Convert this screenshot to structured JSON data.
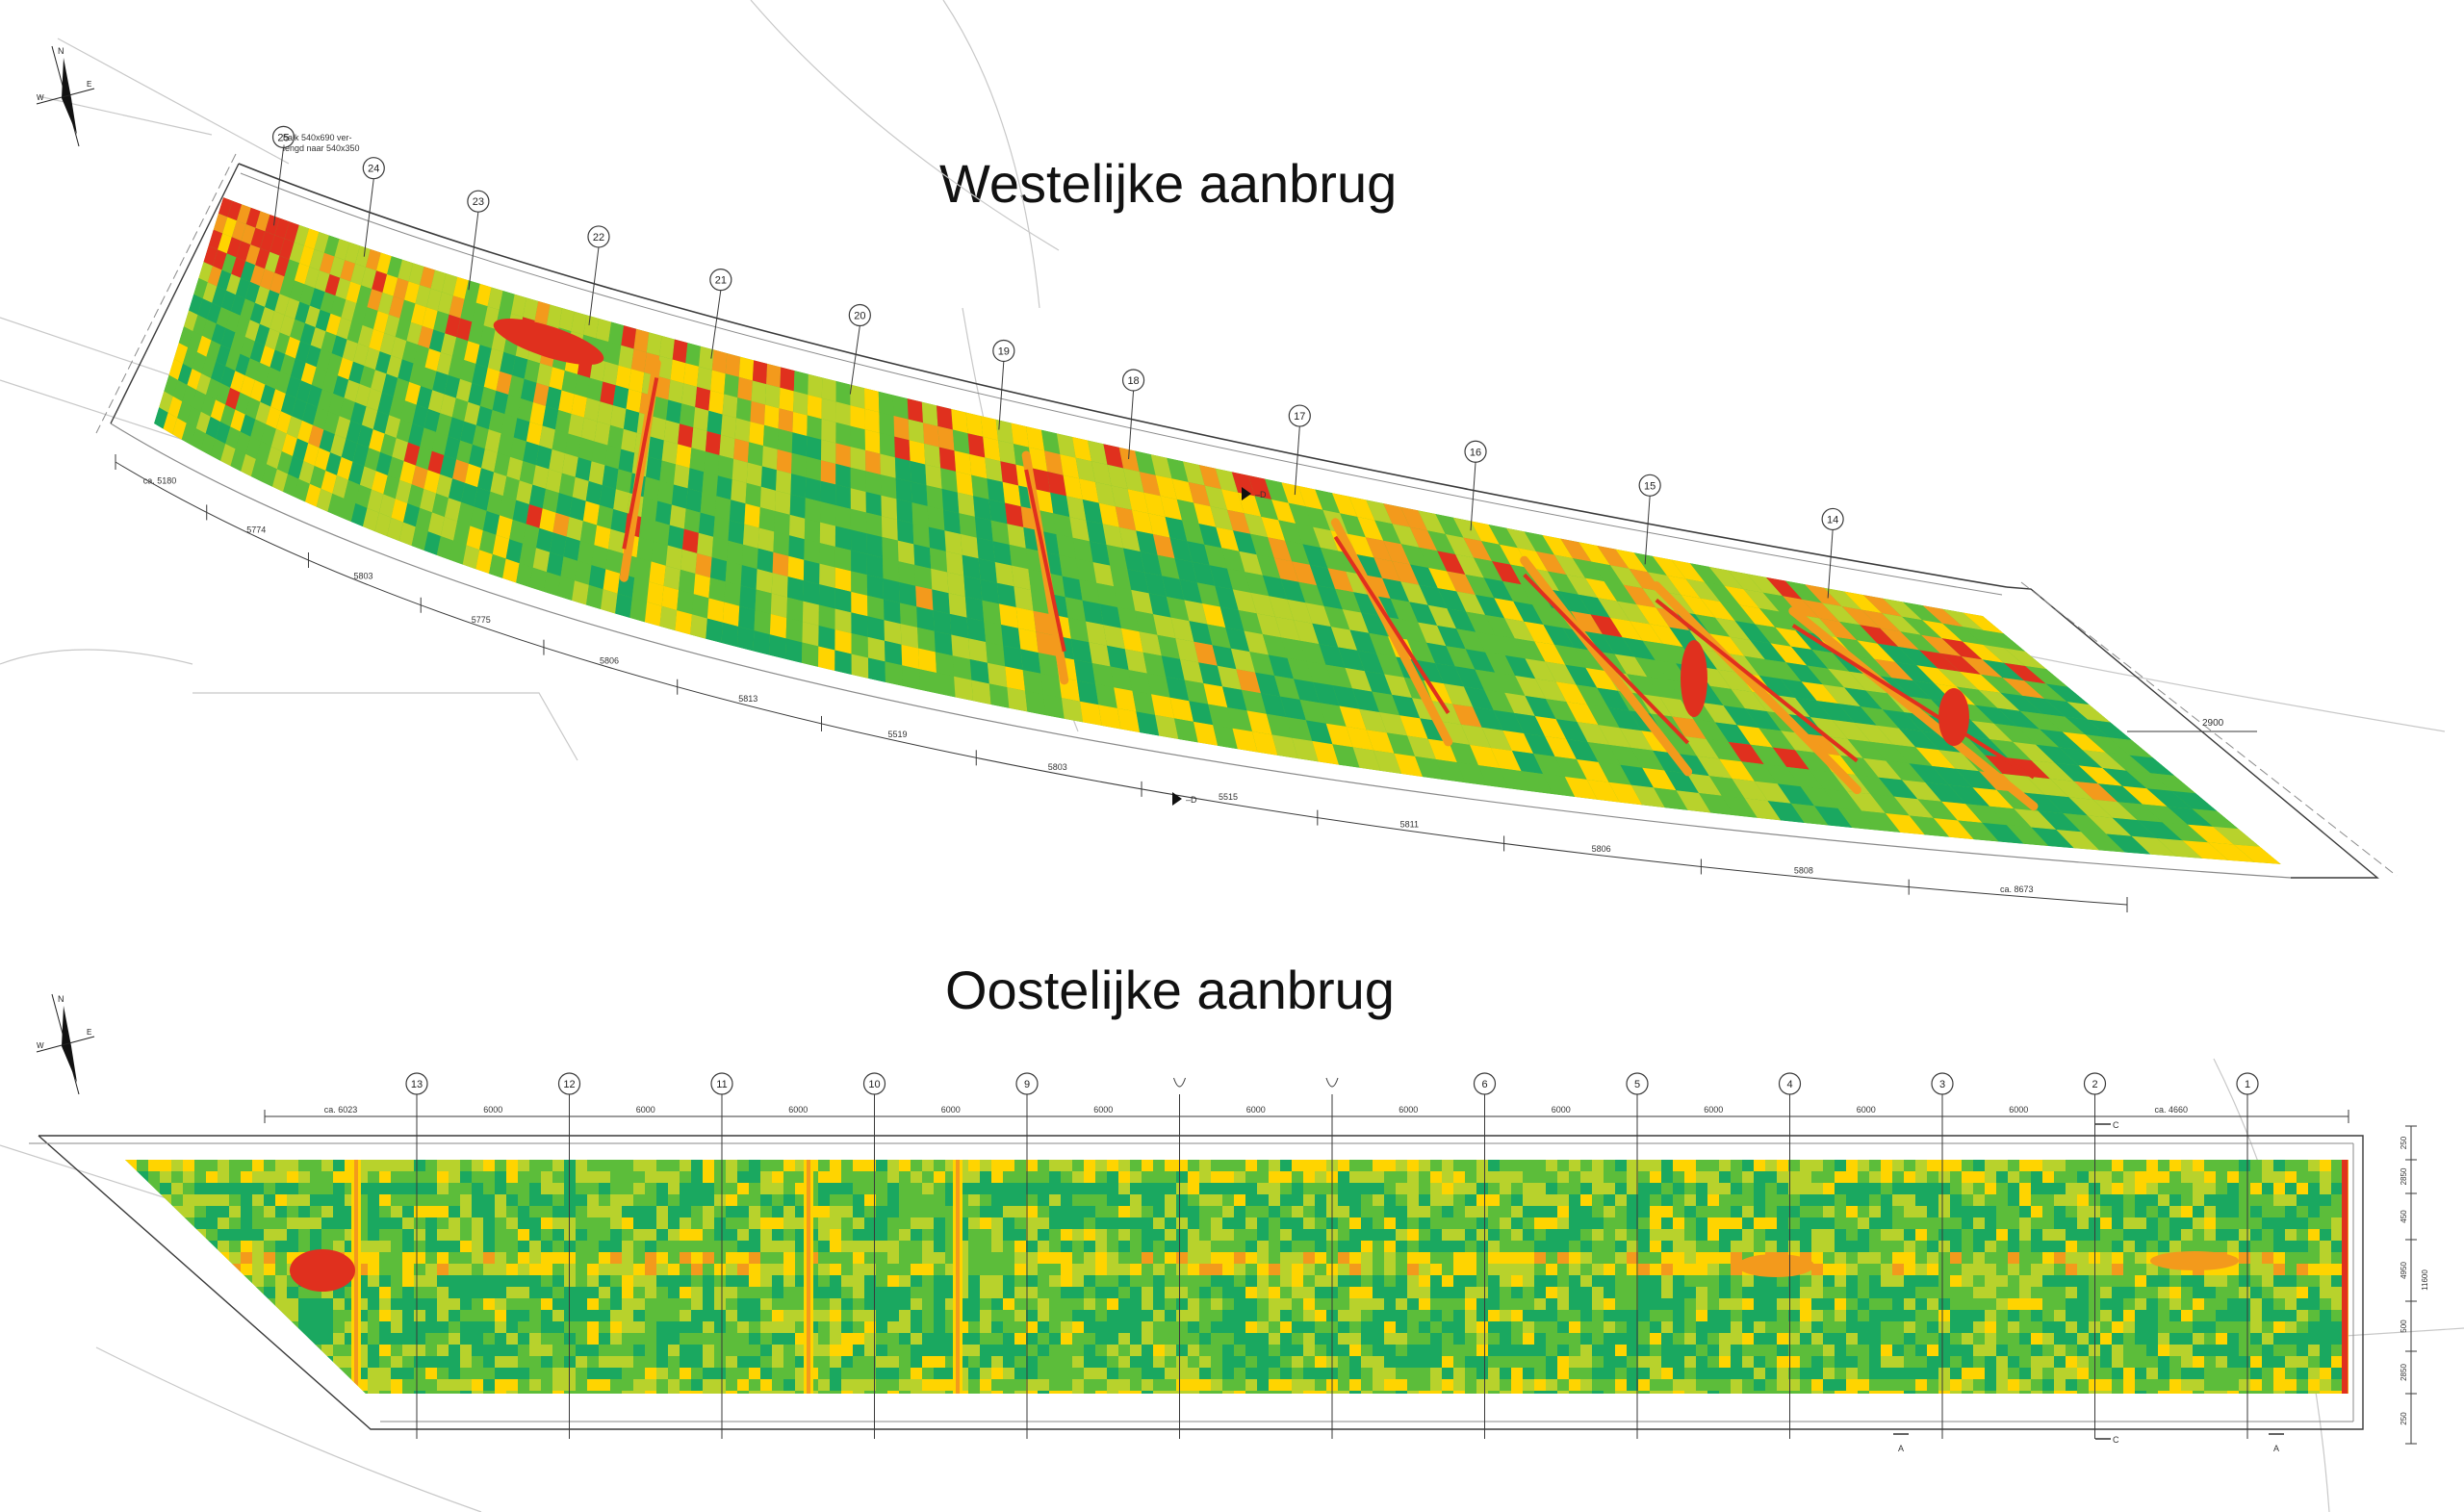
{
  "titles": {
    "west": "Westelijke aanbrug",
    "east": "Oostelijke aanbrug"
  },
  "colors": {
    "dark_green": "#1aa860",
    "green": "#5cbd3a",
    "yellow_green": "#b8d22c",
    "yellow": "#ffd400",
    "orange": "#f39a1c",
    "red": "#e0301e",
    "line": "#8a8a8a",
    "line_dark": "#3a3a3a"
  },
  "west": {
    "note": "balk 540x690 ver- lengd naar 540x350",
    "axes": [
      "25",
      "24",
      "23",
      "22",
      "21",
      "20",
      "19",
      "18",
      "17",
      "16",
      "15",
      "14"
    ],
    "dims": [
      "ca. 5180",
      "5774",
      "5803",
      "5775",
      "5806",
      "5813",
      "5519",
      "5803",
      "5515",
      "5811",
      "5806",
      "5808",
      "ca. 8673"
    ],
    "side_dim": "2900",
    "section_mark": "D"
  },
  "east": {
    "axes": [
      "13",
      "12",
      "11",
      "10",
      "9",
      "",
      "",
      "6",
      "5",
      "4",
      "3",
      "2",
      "1"
    ],
    "dims": [
      "ca. 6023",
      "6000",
      "6000",
      "6000",
      "6000",
      "6000",
      "6000",
      "6000",
      "6000",
      "6000",
      "6000",
      "6000",
      "ca. 4660"
    ],
    "right_dims": [
      "250",
      "2850",
      "450",
      "4950",
      "500",
      "2850",
      "250"
    ],
    "right_total": "11600",
    "section_marks": [
      "A",
      "A",
      "C",
      "C"
    ]
  },
  "compass": {
    "north": "N",
    "west": "W",
    "east": "E"
  }
}
